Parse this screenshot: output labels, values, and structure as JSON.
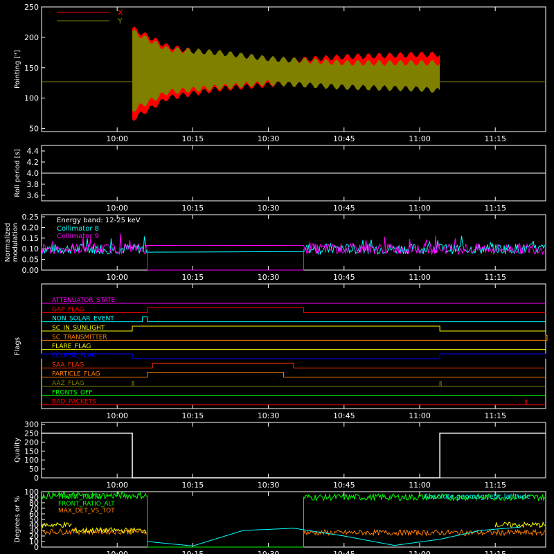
{
  "time_ticks": [
    "10:00",
    "10:15",
    "10:30",
    "10:45",
    "11:00",
    "11:15"
  ],
  "chart_data": [
    {
      "type": "area",
      "ylabel": "Pointing [\"]",
      "yticks": [
        "50",
        "100",
        "150",
        "200",
        "250"
      ],
      "ylim": [
        45,
        250
      ],
      "legend": [
        {
          "label": "X",
          "color": "#ff0000"
        },
        {
          "label": "Y",
          "color": "#7f7f00"
        }
      ],
      "x_range": [
        "09:45",
        "11:25"
      ],
      "reference_value": 127,
      "series": [
        {
          "name": "X",
          "color": "#ff0000",
          "x": [
            "10:03",
            "10:10",
            "10:20",
            "10:30",
            "10:45",
            "11:00",
            "11:04"
          ],
          "upper": [
            215,
            185,
            170,
            160,
            168,
            172,
            172
          ],
          "lower": [
            65,
            100,
            115,
            122,
            135,
            145,
            148
          ]
        },
        {
          "name": "Y",
          "color": "#7f7f00",
          "x": [
            "10:03",
            "10:10",
            "10:20",
            "10:30",
            "10:45",
            "11:00",
            "11:04"
          ],
          "upper": [
            210,
            180,
            175,
            165,
            158,
            158,
            158
          ],
          "lower": [
            80,
            110,
            118,
            125,
            118,
            115,
            112
          ]
        }
      ]
    },
    {
      "type": "line",
      "ylabel": "Roll period [s]",
      "yticks": [
        "3.6",
        "3.8",
        "4.0",
        "4.2",
        "4.4"
      ],
      "ylim": [
        3.5,
        4.5
      ],
      "series": [
        {
          "x": [
            "09:45",
            "11:25"
          ],
          "y": [
            4.0,
            4.0
          ],
          "color": "#ffffff"
        }
      ]
    },
    {
      "type": "line",
      "ylabel": [
        "Normalized",
        "modulation"
      ],
      "yticks": [
        "0.00",
        "0.05",
        "0.10",
        "0.15",
        "0.20",
        "0.25"
      ],
      "ylim": [
        0,
        0.26
      ],
      "annotation": "Energy band: 12-25 keV",
      "series": [
        {
          "name": "Collimator 8",
          "color": "#00ffff",
          "segments": [
            [
              "09:45",
              "10:06",
              0.1
            ],
            [
              "10:37",
              "11:25",
              0.1
            ]
          ]
        },
        {
          "name": "Collimator 9",
          "color": "#ff00ff",
          "segments": [
            [
              "09:45",
              "10:06",
              0.1
            ],
            [
              "10:37",
              "11:25",
              0.1
            ]
          ]
        }
      ]
    },
    {
      "type": "line",
      "ylabel": "Flags",
      "flags": [
        {
          "name": "ATTENUATOR_STATE",
          "color": "#ff00ff",
          "on": []
        },
        {
          "name": "GAP_FLAG",
          "color": "#ff0000",
          "on": [
            [
              "10:06",
              "10:37"
            ]
          ]
        },
        {
          "name": "NON_SOLAR_EVENT",
          "color": "#00ffff",
          "on": [
            [
              "10:05",
              "10:06"
            ]
          ]
        },
        {
          "name": "SC_IN_SUNLIGHT",
          "color": "#ffff00",
          "on": [
            [
              "10:03",
              "11:04"
            ]
          ]
        },
        {
          "name": "SC_TRANSMITTER",
          "color": "#ff7f00",
          "on": [
            [
              "11:25",
              "11:25"
            ]
          ]
        },
        {
          "name": "FLARE_FLAG",
          "color": "#ffff00",
          "on": []
        },
        {
          "name": "ECLIPSE_FLAG",
          "color": "#0000ff",
          "on": [
            [
              "09:45",
              "10:03"
            ],
            [
              "11:04",
              "11:25"
            ]
          ]
        },
        {
          "name": "SAA_FLAG",
          "color": "#ff3300",
          "on": [
            [
              "10:07",
              "10:35"
            ]
          ]
        },
        {
          "name": "PARTICLE_FLAG",
          "color": "#ff7f00",
          "on": [
            [
              "10:06",
              "10:33"
            ]
          ]
        },
        {
          "name": "AAZ_FLAG",
          "color": "#7f7f00",
          "on": [
            [
              "10:03",
              "10:03"
            ],
            [
              "11:04",
              "11:04"
            ]
          ]
        },
        {
          "name": "FRONTS_OFF",
          "color": "#00ff00",
          "on": []
        },
        {
          "name": "BAD_PACKETS",
          "color": "#ff0000",
          "on": [
            [
              "11:21",
              "11:21"
            ]
          ]
        }
      ]
    },
    {
      "type": "line",
      "ylabel": "Quality",
      "yticks": [
        "0",
        "50",
        "100",
        "150",
        "200",
        "250",
        "300"
      ],
      "ylim": [
        0,
        310
      ],
      "series": [
        {
          "color": "#ffffff",
          "x": [
            "09:45",
            "10:03",
            "10:03",
            "11:04",
            "11:04",
            "11:25"
          ],
          "y": [
            250,
            250,
            0,
            0,
            250,
            250
          ]
        }
      ]
    },
    {
      "type": "line",
      "ylabel": "Degrees or %",
      "yticks": [
        "0",
        "10",
        "20",
        "30",
        "40",
        "50",
        "60",
        "70",
        "80",
        "90",
        "100"
      ],
      "ylim": [
        0,
        100
      ],
      "legend": [
        {
          "label": "FRONT_RATIO",
          "color": "#00ff00"
        },
        {
          "label": "FRONT_RATIO_ALT",
          "color": "#00ff00"
        },
        {
          "label": "MAX_DET_VS_TOT",
          "color": "#ff7f00"
        }
      ],
      "annotation": "Absolute geomagnetic latitude",
      "series": [
        {
          "name": "FRONT_RATIO",
          "color": "#00ff00",
          "segments": [
            [
              "09:45",
              "10:06",
              93
            ],
            [
              "10:37",
              "11:25",
              90
            ]
          ]
        },
        {
          "name": "MAX_DET_VS_TOT",
          "color": "#ff7f00",
          "segments": [
            [
              "09:45",
              "10:06",
              28
            ],
            [
              "10:37",
              "11:25",
              26
            ]
          ]
        },
        {
          "name": "",
          "color": "#ffff00",
          "segments": [
            [
              "09:45",
              "09:51",
              40
            ],
            [
              "09:51",
              "10:06",
              30
            ],
            [
              "11:15",
              "11:25",
              40
            ]
          ]
        },
        {
          "name": "Absolute geomagnetic latitude",
          "color": "#00ffff",
          "x": [
            "10:06",
            "10:15",
            "10:25",
            "10:35",
            "10:45",
            "10:55",
            "11:04",
            "11:12",
            "11:20"
          ],
          "y": [
            10,
            2,
            30,
            34,
            20,
            3,
            14,
            30,
            36
          ]
        }
      ]
    }
  ]
}
